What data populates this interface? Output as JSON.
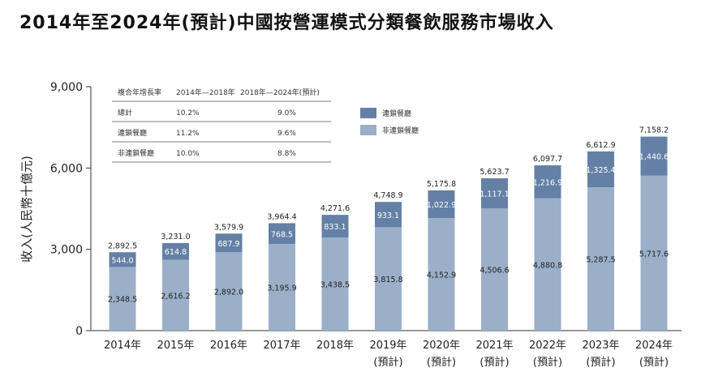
{
  "title": "2014年至2024年(預計)中國按營運模式分類餐飲服務市場收入",
  "chart_data": {
    "type": "bar",
    "stacked": true,
    "ylabel": "收入(人民幣十億元)",
    "ylim": [
      0,
      9000
    ],
    "yticks": [
      "0",
      "3,000",
      "6,000",
      "9,000"
    ],
    "categories": [
      "2014年",
      "2015年",
      "2016年",
      "2017年",
      "2018年",
      "2019年",
      "2020年",
      "2021年",
      "2022年",
      "2023年",
      "2024年"
    ],
    "category_notes": [
      "",
      "",
      "",
      "",
      "",
      "(預計)",
      "(預計)",
      "(預計)",
      "(預計)",
      "(預計)",
      "(預計)"
    ],
    "series": [
      {
        "name": "非連鎖餐廳",
        "color": "#9bafc8",
        "values": [
          2348.5,
          2616.2,
          2892.0,
          3195.9,
          3438.5,
          3815.8,
          4152.9,
          4506.6,
          4880.8,
          5287.5,
          5717.6
        ],
        "labels": [
          "2,348.5",
          "2,616.2",
          "2,892.0",
          "3,195.9",
          "3,438.5",
          "3,815.8",
          "4,152.9",
          "4,506.6",
          "4,880.8",
          "5,287.5",
          "5,717.6"
        ]
      },
      {
        "name": "連鎖餐廳",
        "color": "#6580a6",
        "values": [
          544.0,
          614.8,
          687.9,
          768.5,
          833.1,
          933.1,
          1022.9,
          1117.1,
          1216.9,
          1325.4,
          1440.6
        ],
        "labels": [
          "544.0",
          "614.8",
          "687.9",
          "768.5",
          "833.1",
          "933.1",
          "1,022.9",
          "1,117.1",
          "1,216.9",
          "1,325.4",
          "1,440.6"
        ]
      }
    ],
    "totals": [
      "2,892.5",
      "3,231.0",
      "3,579.9",
      "3,964.4",
      "4,271.6",
      "4,748.9",
      "5,175.8",
      "5,623.7",
      "6,097.7",
      "6,612.9",
      "7,158.2"
    ],
    "legend": [
      {
        "label": "連鎖餐廳",
        "color": "#6580a6"
      },
      {
        "label": "非連鎖餐廳",
        "color": "#9bafc8"
      }
    ],
    "cagr_table": {
      "headers": [
        "複合年增長率",
        "2014年—2018年",
        "2018年—2024年(預計)"
      ],
      "rows": [
        [
          "總計",
          "10.2%",
          "9.0%"
        ],
        [
          "連鎖餐廳",
          "11.2%",
          "9.6%"
        ],
        [
          "非連鎖餐廳",
          "10.0%",
          "8.8%"
        ]
      ]
    }
  }
}
